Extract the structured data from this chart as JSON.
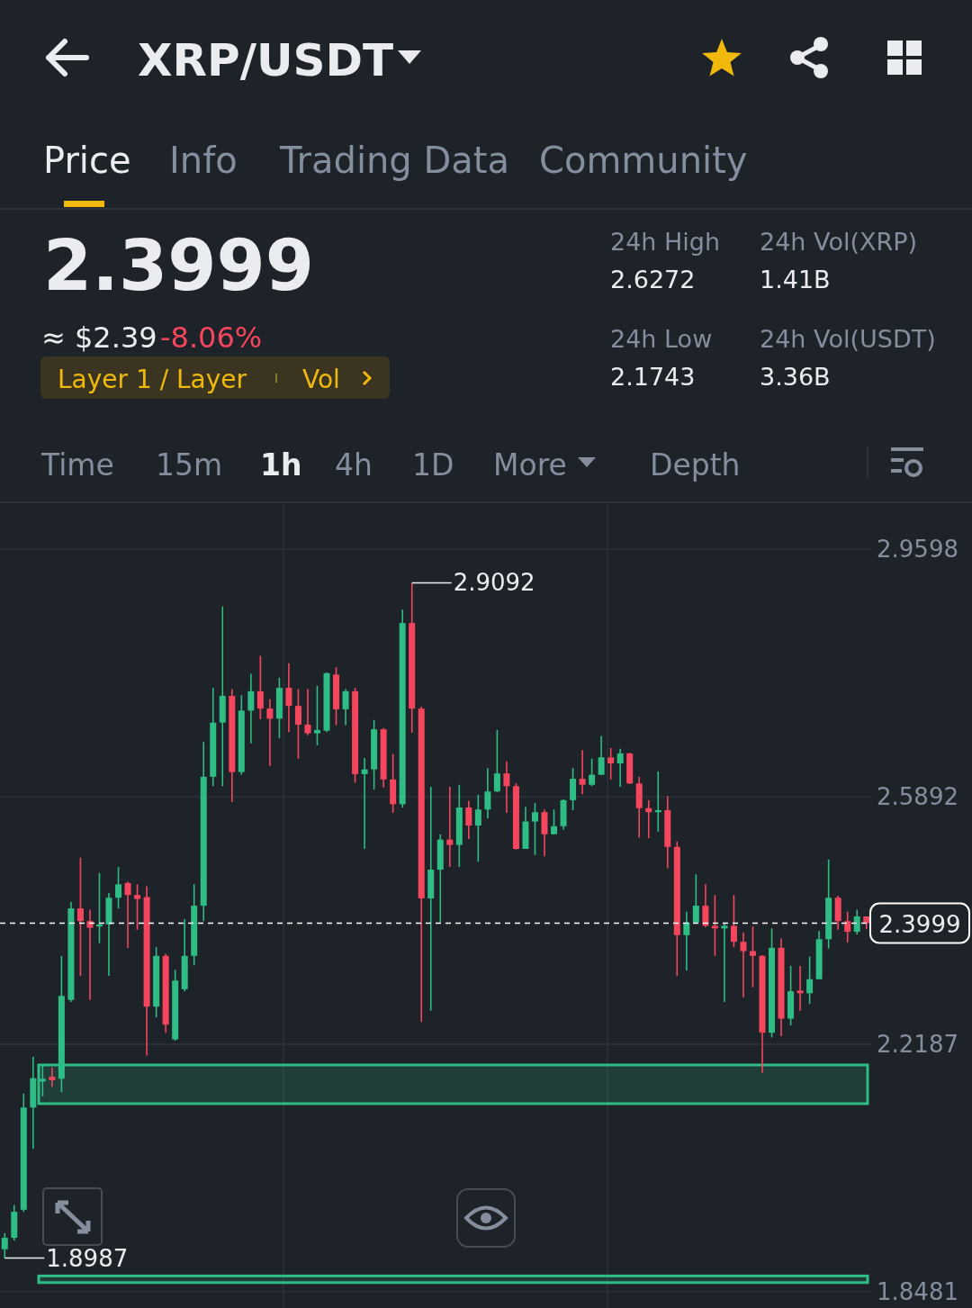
{
  "chart_data": {
    "type": "candlestick",
    "title": "XRP/USDT",
    "categories": [
      null,
      null,
      null,
      null,
      null,
      null,
      null,
      null,
      null,
      null,
      null,
      null,
      null,
      null,
      null,
      null,
      null,
      null,
      null,
      null,
      null,
      null,
      null,
      null,
      null,
      null,
      null,
      null,
      null,
      null,
      null,
      null,
      null,
      null,
      null,
      null,
      null,
      null,
      null,
      null,
      null,
      null,
      null,
      null,
      null,
      null,
      null,
      null,
      null,
      null,
      null,
      null,
      null,
      null,
      null,
      null,
      null,
      null,
      null,
      null,
      null,
      null,
      null,
      null,
      null,
      null,
      null,
      null,
      null,
      null,
      null,
      null,
      null,
      null,
      null,
      null,
      null,
      null,
      null,
      null,
      null,
      null,
      null,
      null,
      null,
      null,
      null,
      null,
      null,
      null,
      null,
      null
    ],
    "ohlc": [
      [
        1.912,
        1.936,
        1.8987,
        1.929
      ],
      [
        1.929,
        1.978,
        1.925,
        1.968
      ],
      [
        1.971,
        2.145,
        1.968,
        2.124
      ],
      [
        2.124,
        2.2,
        2.062,
        2.168
      ],
      [
        2.163,
        2.188,
        2.141,
        2.167
      ],
      [
        2.17,
        2.184,
        2.155,
        2.165
      ],
      [
        2.167,
        2.351,
        2.147,
        2.291
      ],
      [
        2.285,
        2.432,
        2.282,
        2.422
      ],
      [
        2.422,
        2.498,
        2.321,
        2.403
      ],
      [
        2.403,
        2.42,
        2.285,
        2.393
      ],
      [
        2.395,
        2.475,
        2.37,
        2.398
      ],
      [
        2.398,
        2.445,
        2.321,
        2.438
      ],
      [
        2.438,
        2.484,
        2.422,
        2.458
      ],
      [
        2.46,
        2.462,
        2.363,
        2.442
      ],
      [
        2.442,
        2.458,
        2.39,
        2.436
      ],
      [
        2.439,
        2.455,
        2.202,
        2.275
      ],
      [
        2.275,
        2.364,
        2.259,
        2.351
      ],
      [
        2.351,
        2.354,
        2.236,
        2.248
      ],
      [
        2.226,
        2.33,
        2.224,
        2.314
      ],
      [
        2.301,
        2.406,
        2.298,
        2.351
      ],
      [
        2.351,
        2.458,
        2.337,
        2.426
      ],
      [
        2.426,
        2.671,
        2.403,
        2.619
      ],
      [
        2.619,
        2.752,
        2.605,
        2.7
      ],
      [
        2.7,
        2.874,
        2.605,
        2.74
      ],
      [
        2.74,
        2.75,
        2.581,
        2.626
      ],
      [
        2.626,
        2.741,
        2.622,
        2.718
      ],
      [
        2.718,
        2.773,
        2.669,
        2.747
      ],
      [
        2.747,
        2.8,
        2.705,
        2.721
      ],
      [
        2.721,
        2.735,
        2.635,
        2.706
      ],
      [
        2.706,
        2.767,
        2.677,
        2.752
      ],
      [
        2.752,
        2.789,
        2.686,
        2.725
      ],
      [
        2.725,
        2.75,
        2.646,
        2.697
      ],
      [
        2.697,
        2.75,
        2.681,
        2.684
      ],
      [
        2.684,
        2.755,
        2.666,
        2.689
      ],
      [
        2.688,
        2.775,
        2.686,
        2.774
      ],
      [
        2.772,
        2.783,
        2.696,
        2.72
      ],
      [
        2.72,
        2.75,
        2.696,
        2.747
      ],
      [
        2.747,
        2.752,
        2.61,
        2.623
      ],
      [
        2.623,
        2.647,
        2.511,
        2.63
      ],
      [
        2.63,
        2.704,
        2.6,
        2.69
      ],
      [
        2.69,
        2.692,
        2.603,
        2.615
      ],
      [
        2.615,
        2.653,
        2.565,
        2.578
      ],
      [
        2.578,
        2.869,
        2.573,
        2.849
      ],
      [
        2.849,
        2.9092,
        2.685,
        2.721
      ],
      [
        2.721,
        2.724,
        2.252,
        2.437
      ],
      [
        2.437,
        2.604,
        2.269,
        2.48
      ],
      [
        2.48,
        2.533,
        2.401,
        2.525
      ],
      [
        2.525,
        2.604,
        2.484,
        2.517
      ],
      [
        2.517,
        2.607,
        2.484,
        2.573
      ],
      [
        2.573,
        2.583,
        2.526,
        2.546
      ],
      [
        2.546,
        2.592,
        2.492,
        2.57
      ],
      [
        2.57,
        2.632,
        2.557,
        2.597
      ],
      [
        2.597,
        2.689,
        2.596,
        2.624
      ],
      [
        2.624,
        2.642,
        2.565,
        2.605
      ],
      [
        2.605,
        2.609,
        2.51,
        2.511
      ],
      [
        2.511,
        2.574,
        2.511,
        2.552
      ],
      [
        2.552,
        2.58,
        2.502,
        2.566
      ],
      [
        2.566,
        2.57,
        2.5,
        2.533
      ],
      [
        2.533,
        2.57,
        2.533,
        2.545
      ],
      [
        2.545,
        2.585,
        2.54,
        2.584
      ],
      [
        2.584,
        2.632,
        2.569,
        2.616
      ],
      [
        2.616,
        2.659,
        2.593,
        2.607
      ],
      [
        2.607,
        2.646,
        2.605,
        2.622
      ],
      [
        2.622,
        2.68,
        2.622,
        2.648
      ],
      [
        2.648,
        2.662,
        2.615,
        2.639
      ],
      [
        2.639,
        2.661,
        2.604,
        2.654
      ],
      [
        2.654,
        2.655,
        2.608,
        2.609
      ],
      [
        2.609,
        2.619,
        2.528,
        2.572
      ],
      [
        2.572,
        2.584,
        2.527,
        2.566
      ],
      [
        2.566,
        2.627,
        2.537,
        2.569
      ],
      [
        2.569,
        2.59,
        2.482,
        2.514
      ],
      [
        2.514,
        2.522,
        2.321,
        2.382
      ],
      [
        2.382,
        2.417,
        2.329,
        2.401
      ],
      [
        2.401,
        2.473,
        2.399,
        2.426
      ],
      [
        2.426,
        2.458,
        2.394,
        2.396
      ],
      [
        2.396,
        2.442,
        2.351,
        2.392
      ],
      [
        2.392,
        2.401,
        2.282,
        2.396
      ],
      [
        2.396,
        2.442,
        2.364,
        2.372
      ],
      [
        2.372,
        2.386,
        2.289,
        2.358
      ],
      [
        2.358,
        2.395,
        2.304,
        2.351
      ],
      [
        2.351,
        2.352,
        2.176,
        2.236
      ],
      [
        2.236,
        2.392,
        2.229,
        2.363
      ],
      [
        2.363,
        2.377,
        2.231,
        2.257
      ],
      [
        2.257,
        2.336,
        2.247,
        2.298
      ],
      [
        2.299,
        2.336,
        2.269,
        2.295
      ],
      [
        2.295,
        2.35,
        2.279,
        2.316
      ],
      [
        2.316,
        2.388,
        2.316,
        2.376
      ],
      [
        2.376,
        2.495,
        2.362,
        2.438
      ],
      [
        2.438,
        2.441,
        2.39,
        2.403
      ],
      [
        2.403,
        2.417,
        2.371,
        2.387
      ],
      [
        2.387,
        2.42,
        2.383,
        2.41
      ],
      [
        2.41,
        2.41,
        2.391,
        2.3999
      ]
    ],
    "ylim": [
      1.824,
      3.027
    ],
    "yticks": [
      2.9598,
      2.5892,
      2.2187,
      1.8481
    ],
    "grid": "y",
    "ref_lines": [
      {
        "axis": "y",
        "value": 2.3999,
        "label": "2.3999",
        "color": "#ffffff",
        "line_style": "dashed"
      }
    ],
    "bands": [
      {
        "axis": "y",
        "from": 2.1298,
        "to": 2.1877,
        "color": "#2ebd85"
      },
      {
        "axis": "y",
        "from": 1.862,
        "to": 1.872,
        "color": "#2ebd85"
      }
    ],
    "annotations": [
      "2.9092",
      "1.8987",
      "Price",
      "Info",
      "Trading Data",
      "Community",
      "2.3999",
      "≈ $2.39",
      "-8.06%",
      "Layer 1 / Layer",
      "Vol",
      "24h High",
      "2.6272",
      "24h Vol(XRP)",
      "1.41B",
      "24h Low",
      "2.1743",
      "24h Vol(USDT)",
      "3.36B",
      "Time",
      "15m",
      "1h",
      "4h",
      "1D",
      "More",
      "Depth"
    ]
  }
}
